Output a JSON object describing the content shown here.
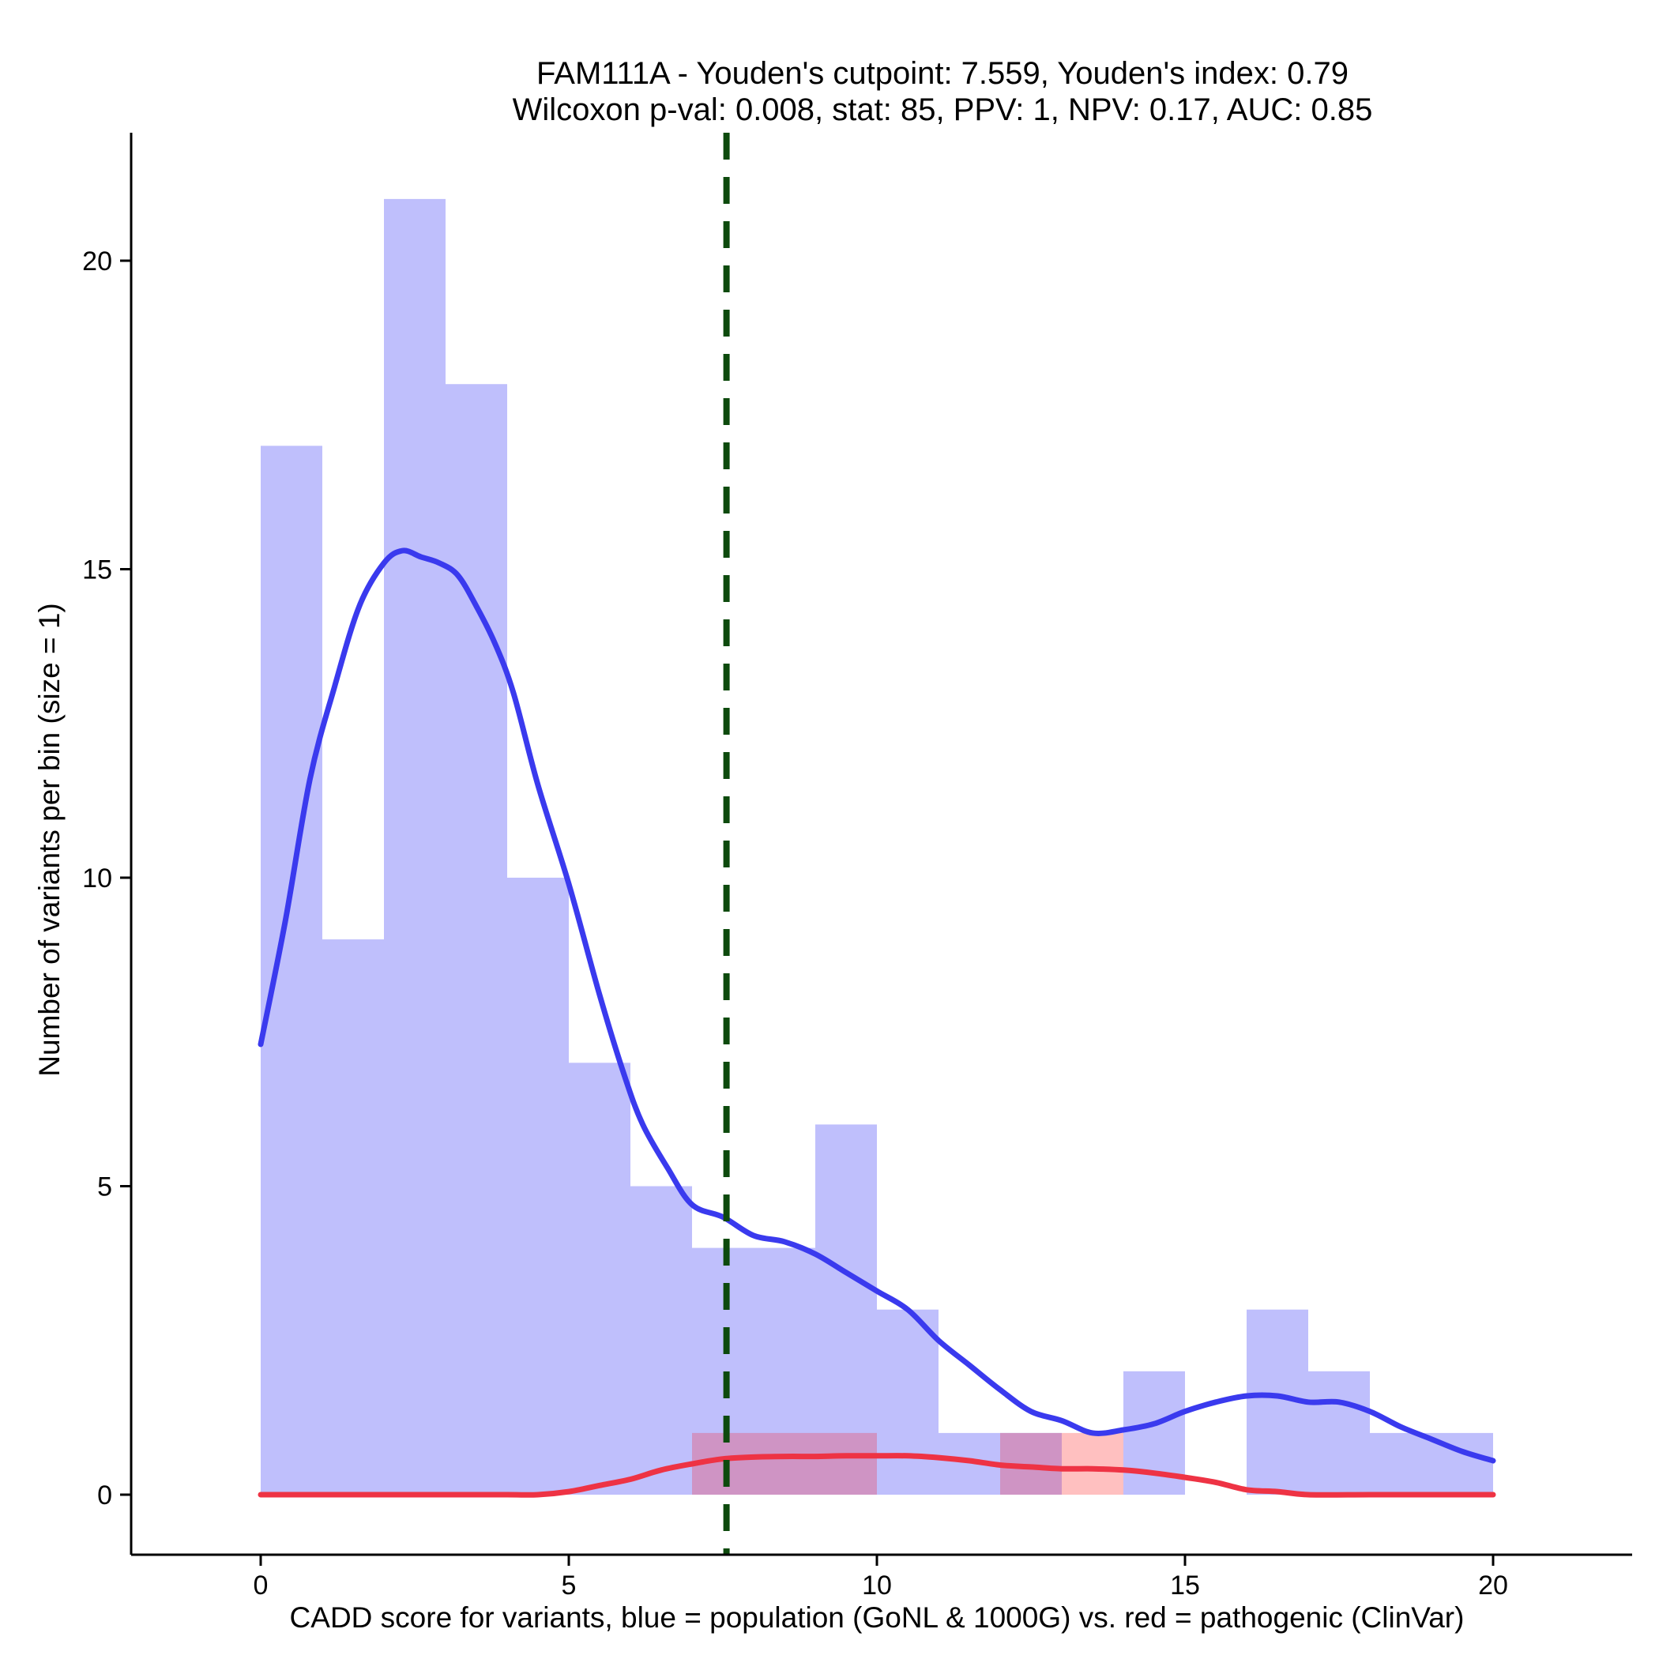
{
  "chart_data": {
    "type": "bar",
    "title_line1": "FAM111A - Youden's cutpoint: 7.559, Youden's index: 0.79",
    "title_line2": "Wilcoxon p-val: 0.008, stat: 85, PPV: 1, NPV: 0.17, AUC: 0.85",
    "xlabel": "CADD score for variants, blue = population (GoNL & 1000G) vs. red = pathogenic (ClinVar)",
    "ylabel": "Number of variants per bin (size = 1)",
    "xlim": [
      -2.1,
      22.0
    ],
    "ylim": [
      -1.05,
      22.0
    ],
    "x_ticks": [
      0,
      5,
      10,
      15,
      20
    ],
    "y_ticks": [
      0,
      5,
      10,
      15,
      20
    ],
    "bin_size": 1,
    "cutpoint": 7.559,
    "colors": {
      "population_bar": "#bfbffc",
      "pathogenic_bar": "#ffc0c0",
      "overlap_bar": "#cf94c4",
      "population_density": "#3a3aee",
      "pathogenic_density": "#ee3344",
      "cutpoint_line": "#0d4a0d"
    },
    "series": [
      {
        "name": "population (GoNL & 1000G)",
        "bin_starts": [
          0,
          1,
          2,
          3,
          4,
          5,
          6,
          7,
          8,
          9,
          10,
          11,
          12,
          13,
          14,
          15,
          16,
          17,
          18,
          19
        ],
        "values": [
          17,
          9,
          21,
          18,
          10,
          7,
          5,
          4,
          4,
          6,
          3,
          1,
          1,
          0,
          2,
          0,
          3,
          2,
          1,
          1
        ]
      },
      {
        "name": "pathogenic (ClinVar)",
        "bin_starts": [
          0,
          1,
          2,
          3,
          4,
          5,
          6,
          7,
          8,
          9,
          10,
          11,
          12,
          13,
          14,
          15,
          16,
          17,
          18,
          19
        ],
        "values": [
          0,
          0,
          0,
          0,
          0,
          0,
          0,
          1,
          1,
          1,
          0,
          0,
          1,
          1,
          0,
          0,
          0,
          0,
          0,
          0
        ]
      }
    ],
    "density_curves": [
      {
        "name": "population density",
        "x": [
          0,
          0.4,
          0.8,
          1.2,
          1.6,
          2.0,
          2.3,
          2.6,
          2.9,
          3.2,
          3.5,
          3.8,
          4.1,
          4.5,
          5.0,
          5.5,
          5.9,
          6.2,
          6.6,
          7.0,
          7.5,
          8.0,
          8.5,
          9.0,
          9.5,
          10.0,
          10.5,
          11.0,
          11.5,
          12.0,
          12.5,
          13.0,
          13.5,
          14.0,
          14.5,
          15.0,
          15.5,
          16.0,
          16.5,
          17.0,
          17.5,
          18.0,
          18.5,
          19.0,
          19.5,
          20.0
        ],
        "y": [
          7.3,
          9.3,
          11.6,
          13.1,
          14.4,
          15.1,
          15.3,
          15.2,
          15.1,
          14.9,
          14.4,
          13.8,
          13.0,
          11.5,
          9.9,
          8.1,
          6.8,
          6.0,
          5.3,
          4.7,
          4.5,
          4.2,
          4.1,
          3.9,
          3.6,
          3.3,
          3.0,
          2.5,
          2.1,
          1.7,
          1.35,
          1.2,
          1.0,
          1.05,
          1.15,
          1.35,
          1.5,
          1.6,
          1.6,
          1.5,
          1.5,
          1.35,
          1.1,
          0.9,
          0.7,
          0.55
        ]
      },
      {
        "name": "pathogenic density",
        "x": [
          0,
          1,
          2,
          3,
          4,
          4.5,
          5,
          5.5,
          6,
          6.5,
          7,
          7.5,
          8,
          8.5,
          9,
          9.5,
          10,
          10.5,
          11,
          11.5,
          12,
          12.5,
          13,
          13.5,
          14,
          14.5,
          15,
          15.5,
          16,
          16.5,
          17,
          18,
          19,
          20
        ],
        "y": [
          0,
          0,
          0,
          0,
          0,
          0,
          0.05,
          0.15,
          0.25,
          0.4,
          0.5,
          0.58,
          0.61,
          0.62,
          0.62,
          0.63,
          0.63,
          0.63,
          0.6,
          0.55,
          0.48,
          0.45,
          0.42,
          0.42,
          0.4,
          0.35,
          0.28,
          0.2,
          0.08,
          0.05,
          0.0,
          0,
          0,
          0
        ]
      }
    ]
  }
}
